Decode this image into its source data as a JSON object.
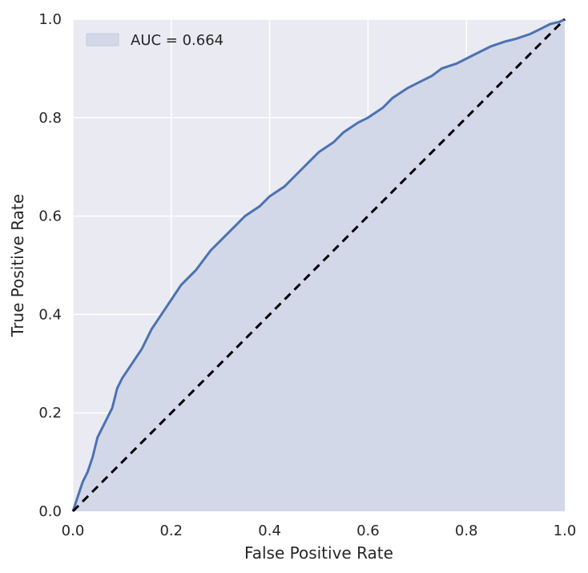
{
  "chart_data": {
    "type": "area",
    "title": "",
    "xlabel": "False Positive Rate",
    "ylabel": "True Positive Rate",
    "xlim": [
      0.0,
      1.0
    ],
    "ylim": [
      0.0,
      1.0
    ],
    "xticks": [
      "0.0",
      "0.2",
      "0.4",
      "0.6",
      "0.8",
      "1.0"
    ],
    "yticks": [
      "0.0",
      "0.2",
      "0.4",
      "0.6",
      "0.8",
      "1.0"
    ],
    "grid": true,
    "legend": {
      "position": "top-left",
      "entries": [
        "AUC = 0.664"
      ]
    },
    "series": [
      {
        "name": "AUC = 0.664",
        "x": [
          0.0,
          0.01,
          0.02,
          0.03,
          0.04,
          0.05,
          0.06,
          0.07,
          0.08,
          0.09,
          0.1,
          0.12,
          0.14,
          0.16,
          0.18,
          0.2,
          0.22,
          0.25,
          0.28,
          0.3,
          0.33,
          0.35,
          0.38,
          0.4,
          0.43,
          0.45,
          0.48,
          0.5,
          0.53,
          0.55,
          0.58,
          0.6,
          0.63,
          0.65,
          0.68,
          0.7,
          0.73,
          0.75,
          0.78,
          0.8,
          0.83,
          0.85,
          0.88,
          0.9,
          0.93,
          0.95,
          0.97,
          0.99,
          1.0
        ],
        "y": [
          0.0,
          0.03,
          0.06,
          0.08,
          0.11,
          0.15,
          0.17,
          0.19,
          0.21,
          0.25,
          0.27,
          0.3,
          0.33,
          0.37,
          0.4,
          0.43,
          0.46,
          0.49,
          0.53,
          0.55,
          0.58,
          0.6,
          0.62,
          0.64,
          0.66,
          0.68,
          0.71,
          0.73,
          0.75,
          0.77,
          0.79,
          0.8,
          0.82,
          0.84,
          0.86,
          0.87,
          0.885,
          0.9,
          0.91,
          0.92,
          0.935,
          0.945,
          0.955,
          0.96,
          0.97,
          0.98,
          0.99,
          0.995,
          1.0
        ],
        "color": "#4c72b0",
        "fill": "#d2d8e8"
      },
      {
        "name": "",
        "x": [
          0.0,
          1.0
        ],
        "y": [
          0.0,
          1.0
        ],
        "color": "#000000",
        "style": "dashed"
      }
    ]
  },
  "colors": {
    "plot_background": "#eaeaf2",
    "grid": "#ffffff",
    "roc_line": "#4c72b0",
    "roc_fill": "#d2d8e8",
    "diagonal": "#000000",
    "text": "#262626"
  }
}
